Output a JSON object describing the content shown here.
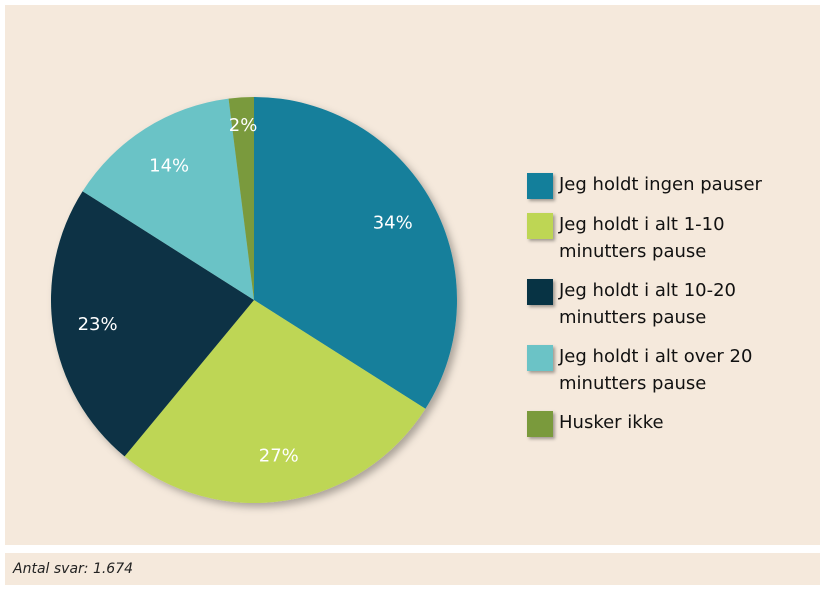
{
  "chart_data": {
    "type": "pie",
    "categories": [
      "Jeg holdt ingen pauser",
      "Jeg holdt i alt 1-10 minutters pause",
      "Jeg holdt i alt 10-20 minutters pause",
      "Jeg holdt i alt over 20 minutters pause",
      "Husker ikke"
    ],
    "values": [
      34,
      27,
      23,
      14,
      2
    ],
    "value_labels": [
      "34%",
      "27%",
      "23%",
      "14%",
      "2%"
    ],
    "colors": [
      "#137f9b",
      "#bed654",
      "#073344",
      "#6bc3c6",
      "#7a9a3c"
    ],
    "legend": "right",
    "note": "Antal svar: 1.674"
  }
}
